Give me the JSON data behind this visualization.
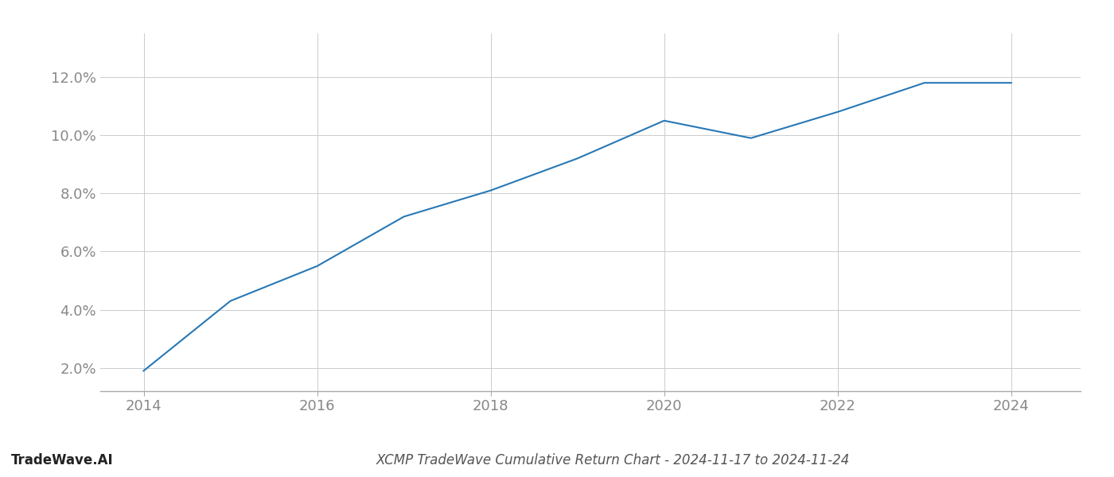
{
  "x_values": [
    2014,
    2015,
    2016,
    2017,
    2018,
    2019,
    2020,
    2021,
    2022,
    2023,
    2024
  ],
  "y_values": [
    0.019,
    0.043,
    0.055,
    0.072,
    0.081,
    0.092,
    0.105,
    0.099,
    0.108,
    0.118,
    0.118
  ],
  "line_color": "#2878b5",
  "line_width": 1.5,
  "title": "XCMP TradeWave Cumulative Return Chart - 2024-11-17 to 2024-11-24",
  "xlabel": "",
  "ylabel": "",
  "xlim": [
    2013.5,
    2024.8
  ],
  "ylim": [
    0.012,
    0.135
  ],
  "yticks": [
    0.02,
    0.04,
    0.06,
    0.08,
    0.1,
    0.12
  ],
  "xticks": [
    2014,
    2016,
    2018,
    2020,
    2022,
    2024
  ],
  "grid_color": "#cccccc",
  "grid_alpha": 1.0,
  "grid_linewidth": 0.7,
  "bg_color": "#ffffff",
  "watermark_text": "TradeWave.AI",
  "watermark_fontsize": 12,
  "title_fontsize": 12,
  "tick_fontsize": 13,
  "tick_color": "#888888",
  "spine_color": "#aaaaaa"
}
